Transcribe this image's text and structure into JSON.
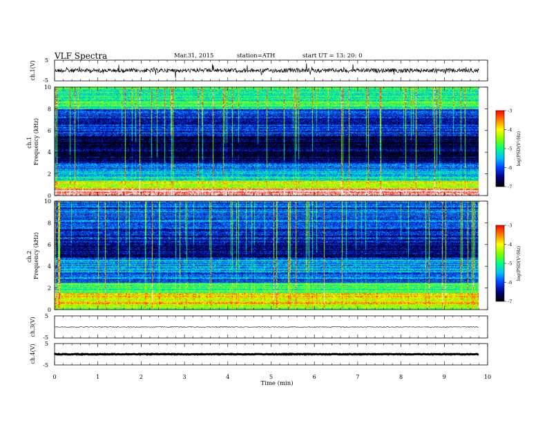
{
  "header": {
    "title": "VLF  Spectra",
    "date": "Mar.31, 2015",
    "station": "station=ATH",
    "start": "start  UT  =   13: 20: 0"
  },
  "chart_data": [
    {
      "type": "line",
      "panel": "ch.1 waveform",
      "ylabel": "ch.1(V)",
      "ylim": [
        -5,
        5
      ],
      "yticks": [
        "5",
        "-5"
      ],
      "series": [
        {
          "approx_level": 0,
          "noise_amplitude": 0.6
        }
      ]
    },
    {
      "type": "heatmap",
      "panel": "ch.1 spectrogram",
      "ylabel": "ch.1\nFrequency  (kHz)",
      "ylim": [
        0,
        10
      ],
      "yticks": [
        "0",
        "2",
        "4",
        "6",
        "8",
        "10"
      ],
      "x_extent_min": [
        0,
        9.8
      ],
      "colorbar": {
        "label": "log(PSD(V²/Hz)",
        "range": [
          -7,
          -3
        ],
        "ticks": [
          "-3",
          "-4",
          "-5",
          "-6",
          "-7"
        ]
      },
      "bands": [
        {
          "from": 0,
          "to": 0.6,
          "level": -3.2
        },
        {
          "from": 0.6,
          "to": 1.3,
          "level": -4.6
        },
        {
          "from": 1.3,
          "to": 2.2,
          "level": -5.5
        },
        {
          "from": 2.2,
          "to": 3.0,
          "level": -6.1
        },
        {
          "from": 3.0,
          "to": 5.5,
          "level": -6.8
        },
        {
          "from": 5.5,
          "to": 6.2,
          "level": -6.2
        },
        {
          "from": 6.2,
          "to": 8.0,
          "level": -6.3
        },
        {
          "from": 8.0,
          "to": 10.0,
          "level": -5.2
        }
      ]
    },
    {
      "type": "heatmap",
      "panel": "ch.2 spectrogram",
      "ylabel": "ch.2\nFrequency  (kHz)",
      "ylim": [
        0,
        10
      ],
      "yticks": [
        "0",
        "2",
        "4",
        "6",
        "8",
        "10"
      ],
      "x_extent_min": [
        0,
        9.8
      ],
      "colorbar": {
        "label": "log(PSD(V²/Hz)",
        "range": [
          -7,
          -3
        ],
        "ticks": [
          "-3",
          "-4",
          "-5",
          "-6",
          "-7"
        ]
      },
      "bands": [
        {
          "from": 0,
          "to": 0.4,
          "level": -4.8
        },
        {
          "from": 0.4,
          "to": 1.5,
          "level": -4.3
        },
        {
          "from": 1.5,
          "to": 2.5,
          "level": -5.2
        },
        {
          "from": 2.5,
          "to": 3.5,
          "level": -6.0
        },
        {
          "from": 3.5,
          "to": 4.8,
          "level": -5.8
        },
        {
          "from": 4.8,
          "to": 6.0,
          "level": -6.6
        },
        {
          "from": 6.0,
          "to": 7.5,
          "level": -6.4
        },
        {
          "from": 7.5,
          "to": 10.0,
          "level": -6.0
        }
      ]
    },
    {
      "type": "line",
      "panel": "ch.3 waveform",
      "ylabel": "ch.3(V)",
      "ylim": [
        -5,
        5
      ],
      "yticks": [
        "5",
        "-5"
      ],
      "series": [
        {
          "approx_level": 0,
          "noise_amplitude": 0.1
        }
      ]
    },
    {
      "type": "line",
      "panel": "ch.4 waveform",
      "ylabel": "ch.4(V)",
      "ylim": [
        -5,
        5
      ],
      "yticks": [
        "5",
        "-5"
      ],
      "series": [
        {
          "approx_level": 0,
          "noise_amplitude": 0.25
        }
      ],
      "xlabel": "Time  (min)",
      "xlim": [
        0,
        10
      ],
      "xticks": [
        "0",
        "1",
        "2",
        "3",
        "4",
        "5",
        "6",
        "7",
        "8",
        "9",
        "10"
      ]
    }
  ],
  "colors": {
    "scale": [
      "#000000",
      "#000080",
      "#0040ff",
      "#00c0ff",
      "#00ff80",
      "#80ff00",
      "#ffff00",
      "#ff8000",
      "#ff0000",
      "#ffffff"
    ],
    "axis": "#000000"
  }
}
